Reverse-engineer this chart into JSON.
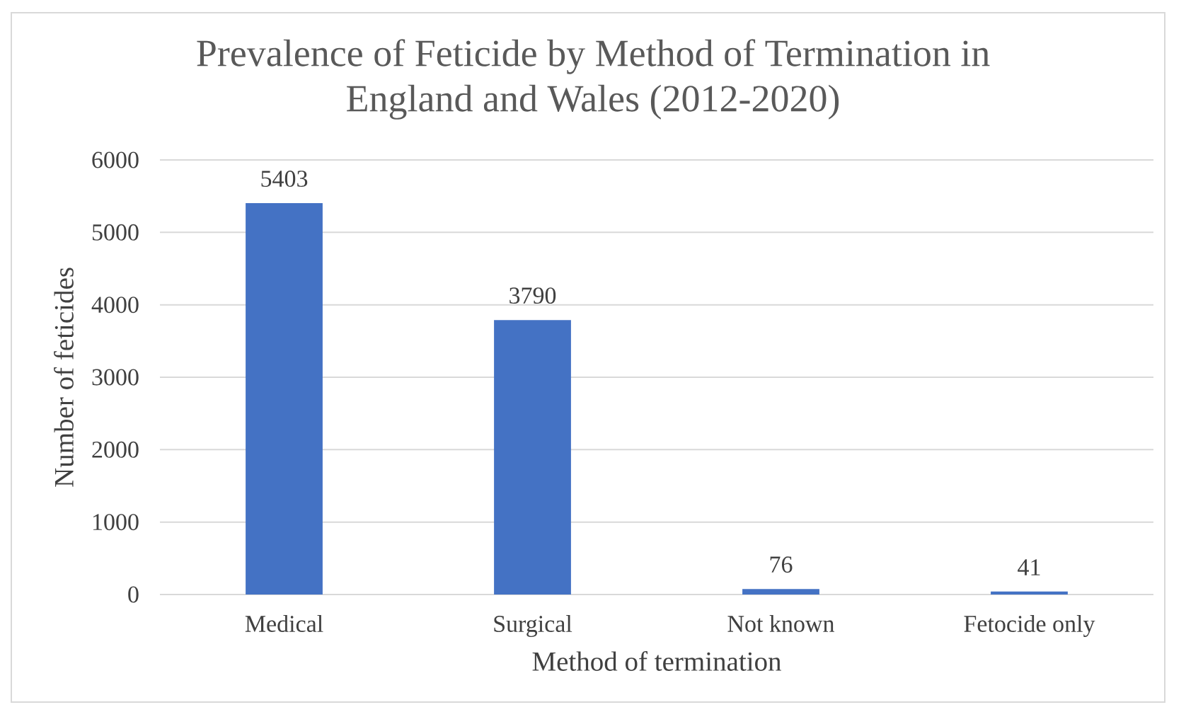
{
  "chart_data": {
    "type": "bar",
    "title": "Prevalence of Feticide by Method of Termination in England and Wales (2012-2020)",
    "xlabel": "Method of termination",
    "ylabel": "Number of feticides",
    "categories": [
      "Medical",
      "Surgical",
      "Not known",
      "Fetocide only"
    ],
    "values": [
      5403,
      3790,
      76,
      41
    ],
    "color": "#4472c4",
    "ylim": [
      0,
      6000
    ],
    "yticks": [
      0,
      1000,
      2000,
      3000,
      4000,
      5000,
      6000
    ],
    "grid": "y",
    "data_labels": true
  }
}
